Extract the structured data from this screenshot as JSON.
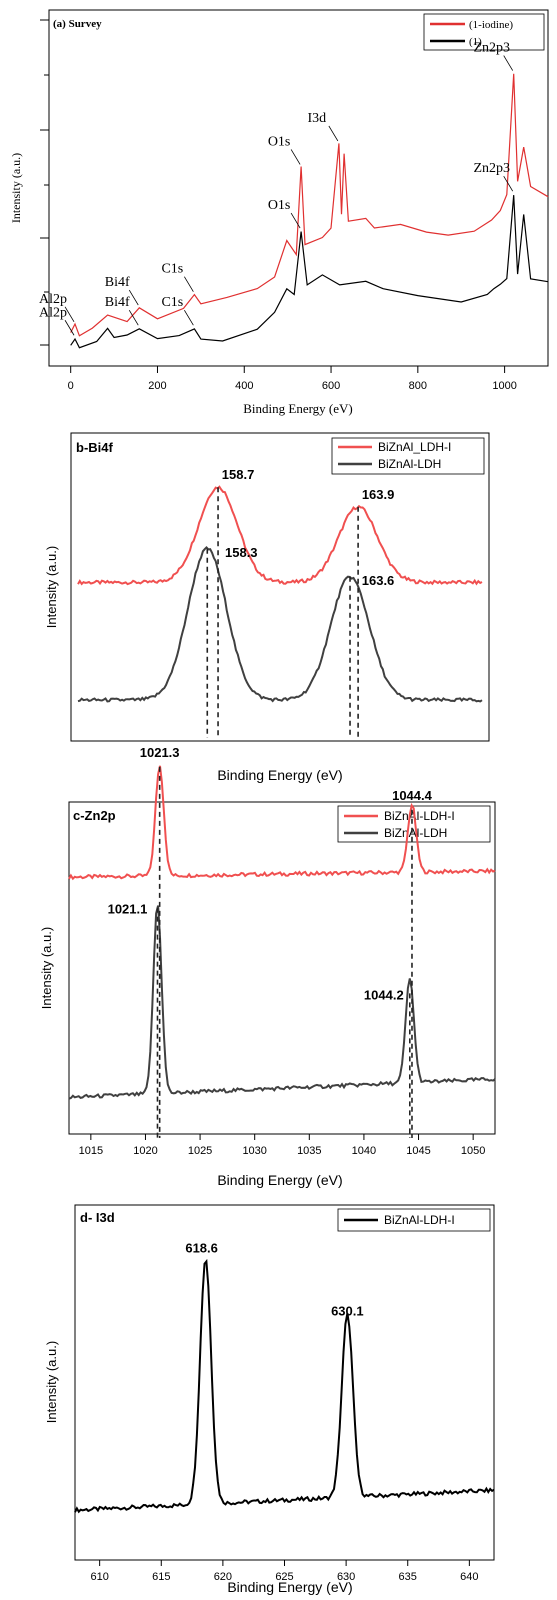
{
  "chart_data": [
    {
      "type": "line",
      "title": "(a) Survey",
      "xlabel": "Binding Energy (eV)",
      "ylabel": "Intensity (a.u.)",
      "xlim": [
        -50,
        1100
      ],
      "x_ticks": [
        "0",
        "200",
        "400",
        "600",
        "800",
        "1000"
      ],
      "legend": {
        "position": "top-right"
      },
      "series": [
        {
          "name": "(1-iodine)",
          "color": "#e03030",
          "points": [
            [
              0,
              0.07
            ],
            [
              10,
              0.09
            ],
            [
              20,
              0.06
            ],
            [
              50,
              0.08
            ],
            [
              85,
              0.12
            ],
            [
              130,
              0.1
            ],
            [
              158,
              0.14
            ],
            [
              200,
              0.11
            ],
            [
              260,
              0.14
            ],
            [
              285,
              0.18
            ],
            [
              300,
              0.15
            ],
            [
              360,
              0.17
            ],
            [
              430,
              0.2
            ],
            [
              470,
              0.23
            ],
            [
              498,
              0.34
            ],
            [
              520,
              0.3
            ],
            [
              531,
              0.56
            ],
            [
              540,
              0.33
            ],
            [
              580,
              0.35
            ],
            [
              600,
              0.38
            ],
            [
              618,
              0.63
            ],
            [
              624,
              0.42
            ],
            [
              630,
              0.6
            ],
            [
              640,
              0.4
            ],
            [
              680,
              0.41
            ],
            [
              700,
              0.38
            ],
            [
              760,
              0.39
            ],
            [
              820,
              0.37
            ],
            [
              870,
              0.36
            ],
            [
              930,
              0.37
            ],
            [
              970,
              0.4
            ],
            [
              990,
              0.43
            ],
            [
              1005,
              0.48
            ],
            [
              1021,
              0.84
            ],
            [
              1030,
              0.52
            ],
            [
              1044,
              0.62
            ],
            [
              1060,
              0.5
            ],
            [
              1100,
              0.47
            ]
          ]
        },
        {
          "name": "(1)",
          "color": "#000000",
          "points": [
            [
              0,
              0.03
            ],
            [
              10,
              0.05
            ],
            [
              20,
              0.02
            ],
            [
              60,
              0.04
            ],
            [
              85,
              0.08
            ],
            [
              100,
              0.05
            ],
            [
              130,
              0.06
            ],
            [
              158,
              0.08
            ],
            [
              200,
              0.05
            ],
            [
              250,
              0.06
            ],
            [
              285,
              0.08
            ],
            [
              300,
              0.05
            ],
            [
              350,
              0.04
            ],
            [
              430,
              0.08
            ],
            [
              470,
              0.13
            ],
            [
              498,
              0.2
            ],
            [
              515,
              0.18
            ],
            [
              531,
              0.37
            ],
            [
              545,
              0.21
            ],
            [
              580,
              0.24
            ],
            [
              620,
              0.21
            ],
            [
              680,
              0.22
            ],
            [
              720,
              0.2
            ],
            [
              800,
              0.18
            ],
            [
              900,
              0.16
            ],
            [
              960,
              0.18
            ],
            [
              975,
              0.2
            ],
            [
              990,
              0.21
            ],
            [
              1005,
              0.23
            ],
            [
              1021,
              0.48
            ],
            [
              1030,
              0.24
            ],
            [
              1044,
              0.42
            ],
            [
              1060,
              0.23
            ],
            [
              1100,
              0.22
            ]
          ]
        }
      ],
      "annotations": [
        {
          "text": "Al2p",
          "series": 0,
          "x": 10
        },
        {
          "text": "Bi4f",
          "series": 0,
          "x": 158
        },
        {
          "text": "C1s",
          "series": 0,
          "x": 285
        },
        {
          "text": "O1s",
          "series": 0,
          "x": 531
        },
        {
          "text": "I3d",
          "series": 0,
          "x": 618
        },
        {
          "text": "Zn2p3",
          "series": 0,
          "x": 1021
        },
        {
          "text": "Al2p",
          "series": 1,
          "x": 10
        },
        {
          "text": "Bi4f",
          "series": 1,
          "x": 158
        },
        {
          "text": "C1s",
          "series": 1,
          "x": 285
        },
        {
          "text": "O1s",
          "series": 1,
          "x": 531
        },
        {
          "text": "Zn2p3",
          "series": 1,
          "x": 1021
        }
      ]
    },
    {
      "type": "line",
      "title": "b-Bi4f",
      "xlabel": "Binding Energy (eV)",
      "ylabel": "Intensity (a.u.)",
      "x_ticks": [],
      "legend": {
        "position": "top-right"
      },
      "series": [
        {
          "name": "BiZnAl_LDH-I",
          "color": "#f05050",
          "baseline": 0.52,
          "peaks": [
            {
              "center": 158.7,
              "height": 0.34
            },
            {
              "center": 163.9,
              "height": 0.27
            }
          ]
        },
        {
          "name": "BiZnAl-LDH",
          "color": "#404040",
          "baseline": 0.1,
          "peaks": [
            {
              "center": 158.3,
              "height": 0.54
            },
            {
              "center": 163.6,
              "height": 0.44
            }
          ]
        }
      ],
      "xlim": [
        153.5,
        168.5
      ],
      "peak_labels": [
        {
          "text": "158.7",
          "x": 158.7,
          "series": 0
        },
        {
          "text": "163.9",
          "x": 163.9,
          "series": 0
        },
        {
          "text": "158.3",
          "x": 158.3,
          "series": 1
        },
        {
          "text": "163.6",
          "x": 163.6,
          "series": 1
        }
      ]
    },
    {
      "type": "line",
      "title": "c-Zn2p",
      "xlabel": "Binding Energy (eV)",
      "ylabel": "Intensity (a.u.)",
      "xlim": [
        1013,
        1052
      ],
      "x_ticks": [
        "1015",
        "1020",
        "1025",
        "1030",
        "1035",
        "1040",
        "1045",
        "1050"
      ],
      "legend": {
        "position": "top-right"
      },
      "series": [
        {
          "name": "BiZnAl-LDH-I",
          "color": "#f05050",
          "baseline": [
            0.82,
            0.84
          ],
          "peaks": [
            {
              "center": 1021.3,
              "height": 0.36
            },
            {
              "center": 1044.4,
              "height": 0.22
            }
          ]
        },
        {
          "name": "BiZnAl-LDH",
          "color": "#404040",
          "baseline": [
            0.1,
            0.16
          ],
          "peaks": [
            {
              "center": 1021.1,
              "height": 0.62
            },
            {
              "center": 1044.2,
              "height": 0.34
            }
          ]
        }
      ],
      "peak_labels": [
        {
          "text": "1021.3",
          "x": 1021.3,
          "series": 0
        },
        {
          "text": "1044.4",
          "x": 1044.4,
          "series": 0
        },
        {
          "text": "1021.1",
          "x": 1021.1,
          "series": 1
        },
        {
          "text": "1044.2",
          "x": 1044.2,
          "series": 1
        }
      ]
    },
    {
      "type": "line",
      "title": "d- I3d",
      "xlabel": "Binding Energy (eV)",
      "ylabel": "Intensity (a.u.)",
      "xlim": [
        608,
        642
      ],
      "x_ticks": [
        "610",
        "615",
        "620",
        "625",
        "630",
        "635",
        "640"
      ],
      "legend": {
        "position": "top-right"
      },
      "series": [
        {
          "name": "BiZnAl-LDH-I",
          "color": "#000000",
          "baseline": [
            0.12,
            0.18
          ],
          "peaks": [
            {
              "center": 618.6,
              "height": 0.74
            },
            {
              "center": 630.1,
              "height": 0.55
            }
          ]
        }
      ],
      "peak_labels": [
        {
          "text": "618.6",
          "x": 618.6,
          "series": 0
        },
        {
          "text": "630.1",
          "x": 630.1,
          "series": 0
        }
      ]
    }
  ]
}
